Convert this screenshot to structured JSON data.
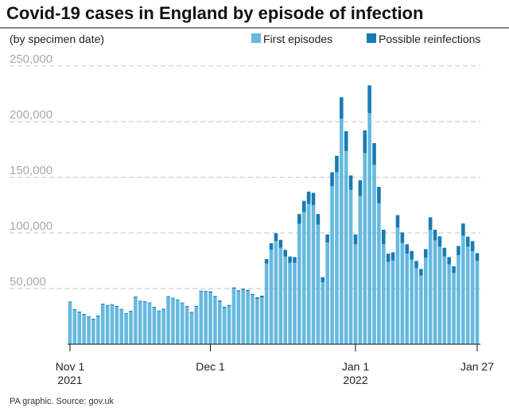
{
  "chart_data": {
    "type": "bar",
    "stacked": true,
    "title": "Covid-19 cases in England by episode of infection",
    "subtitle": "(by specimen date)",
    "source": "PA graphic. Source: gov.uk",
    "x_start": "2021-11-01",
    "x_end": "2022-01-27",
    "x_ticks": [
      {
        "date": "2021-11-01",
        "label": "Nov 1",
        "sublabel": "2021"
      },
      {
        "date": "2021-12-01",
        "label": "Dec 1",
        "sublabel": ""
      },
      {
        "date": "2022-01-01",
        "label": "Jan 1",
        "sublabel": "2022"
      },
      {
        "date": "2022-01-27",
        "label": "Jan 27",
        "sublabel": ""
      }
    ],
    "y_ticks": [
      {
        "v": 50000,
        "label": "50,000"
      },
      {
        "v": 100000,
        "label": "100,000"
      },
      {
        "v": 150000,
        "label": "150,000"
      },
      {
        "v": 200000,
        "label": "200,000"
      },
      {
        "v": 250000,
        "label": "250,000"
      }
    ],
    "ylim": [
      0,
      250000
    ],
    "grid": true,
    "legend_position": "top-right",
    "series": [
      {
        "name": "First episodes",
        "color": "#66b9df",
        "values": [
          37600,
          30700,
          28600,
          26400,
          24300,
          22200,
          25000,
          35700,
          34500,
          35200,
          33600,
          31000,
          27200,
          29300,
          42200,
          38300,
          37900,
          36700,
          32900,
          29500,
          31200,
          42400,
          41000,
          39500,
          36700,
          33600,
          28300,
          33600,
          47400,
          47200,
          46400,
          42300,
          38300,
          32600,
          34200,
          50000,
          47400,
          48800,
          47800,
          44100,
          40600,
          42000,
          72400,
          84800,
          92600,
          86600,
          78800,
          73100,
          73100,
          108000,
          118800,
          126000,
          124800,
          107400,
          55700,
          91400,
          141900,
          154500,
          202600,
          173600,
          138600,
          89800,
          133100,
          171700,
          207600,
          161200,
          126700,
          89800,
          74000,
          75200,
          104800,
          90900,
          81200,
          76000,
          68300,
          61700,
          77600,
          102600,
          93300,
          87900,
          78800,
          71700,
          64000,
          80000,
          97400,
          87600,
          83600,
          74800
        ]
      },
      {
        "name": "Possible reinfections",
        "color": "#167cb4",
        "values": [
          700,
          700,
          700,
          700,
          700,
          700,
          700,
          700,
          700,
          700,
          700,
          700,
          700,
          700,
          700,
          700,
          700,
          700,
          700,
          700,
          700,
          700,
          700,
          700,
          700,
          700,
          700,
          700,
          700,
          700,
          1000,
          1000,
          1000,
          1000,
          1000,
          1000,
          1000,
          1000,
          1000,
          1000,
          1500,
          1600,
          4100,
          5900,
          7200,
          7200,
          6000,
          5700,
          5200,
          9000,
          10000,
          11100,
          11200,
          9600,
          4500,
          7200,
          12600,
          14800,
          19300,
          17800,
          13100,
          8800,
          14300,
          20400,
          25000,
          19500,
          14700,
          13100,
          7400,
          7400,
          11200,
          9600,
          8600,
          7800,
          6500,
          5900,
          7900,
          11400,
          9600,
          9100,
          7900,
          6600,
          6000,
          8300,
          11100,
          9100,
          9000,
          7100
        ]
      }
    ]
  }
}
